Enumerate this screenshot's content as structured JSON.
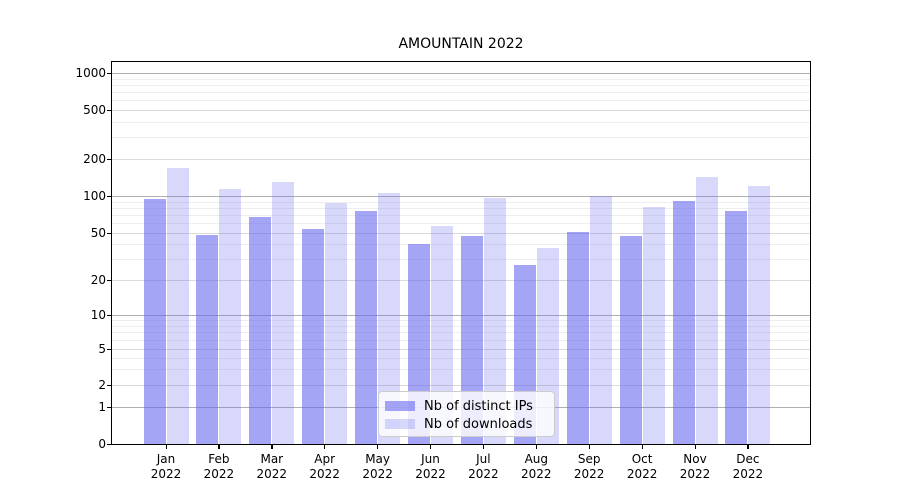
{
  "title": "AMOUNTAIN 2022",
  "chart_data": {
    "type": "bar",
    "title": "AMOUNTAIN 2022",
    "categories": [
      "Jan",
      "Feb",
      "Mar",
      "Apr",
      "May",
      "Jun",
      "Jul",
      "Aug",
      "Sep",
      "Oct",
      "Nov",
      "Dec"
    ],
    "year_label": "2022",
    "series": [
      {
        "name": "Nb of distinct IPs",
        "color": "#6464f0",
        "alpha": 0.58,
        "values": [
          94,
          48,
          67,
          54,
          75,
          40,
          47,
          27,
          51,
          47,
          91,
          75
        ]
      },
      {
        "name": "Nb of downloads",
        "color": "#6464f0",
        "alpha": 0.25,
        "values": [
          170,
          115,
          130,
          88,
          105,
          57,
          96,
          37,
          100,
          81,
          143,
          120
        ]
      }
    ],
    "y_axis": {
      "ticks": [
        0,
        1,
        2,
        5,
        10,
        20,
        50,
        100,
        200,
        500,
        1000
      ],
      "scale": "symlog",
      "range": [
        0,
        1000
      ]
    },
    "x_axis": {
      "tick_labels": [
        "Jan\n2022",
        "Feb\n2022",
        "Mar\n2022",
        "Apr\n2022",
        "May\n2022",
        "Jun\n2022",
        "Jul\n2022",
        "Aug\n2022",
        "Sep\n2022",
        "Oct\n2022",
        "Nov\n2022",
        "Dec\n2022"
      ]
    },
    "grid": "on",
    "legend": {
      "position": "lower center"
    }
  }
}
